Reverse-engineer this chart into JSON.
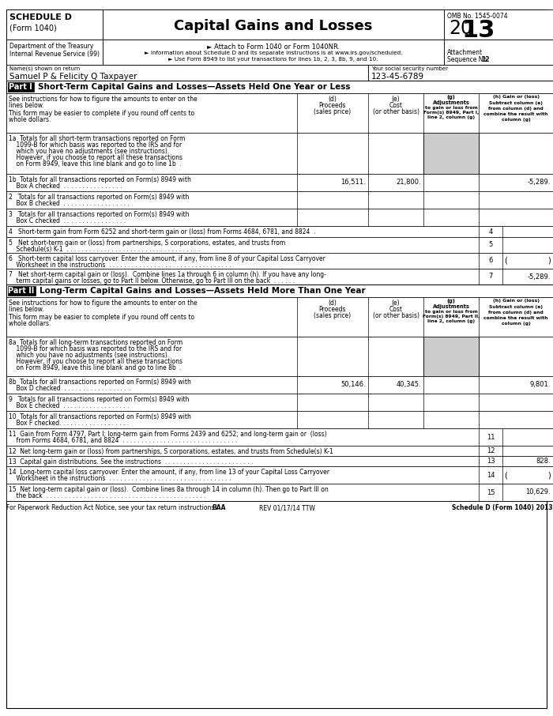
{
  "title": "Capital Gains and Losses",
  "schedule": "SCHEDULE D",
  "form": "(Form 1040)",
  "omb": "OMB No. 1545-0074",
  "year_prefix": "20",
  "year_suffix": "13",
  "attachment": "Attachment",
  "seq": "Sequence No. ",
  "seq_bold": "12",
  "dept": "Department of the Treasury",
  "irs": "Internal Revenue Service (99)",
  "attach_line": "► Attach to Form 1040 or Form 1040NR.",
  "info_line": "► Information about Schedule D and its separate instructions is at www.irs.gov/scheduled.",
  "use_line": "► Use Form 8949 to list your transactions for lines 1b, 2, 3, 8b, 9, and 10.",
  "name_label": "Name(s) shown on return",
  "ssn_label": "Your social security number",
  "name_val": "Samuel P & Felicity Q Taxpayer",
  "ssn_val": "123-45-6789",
  "part1_label": "Part I",
  "part1_title": "Short-Term Capital Gains and Losses—Assets Held One Year or Less",
  "part2_label": "Part II",
  "part2_title": "Long-Term Capital Gains and Losses—Assets Held More Than One Year",
  "footer": "For Paperwork Reduction Act Notice, see your tax return instructions.",
  "footer_baa": "BAA",
  "footer_rev": "REV 01/17/14 TTW",
  "footer_sched": "Schedule D (Form 1040) 2013",
  "gray_cell": "#cccccc",
  "white": "#ffffff",
  "black": "#000000"
}
